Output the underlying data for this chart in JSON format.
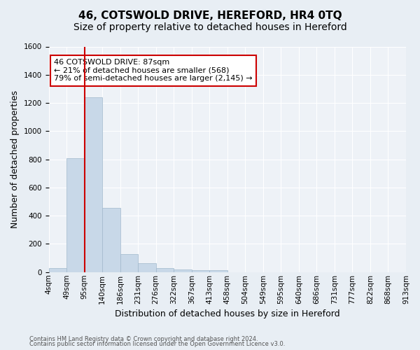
{
  "title": "46, COTSWOLD DRIVE, HEREFORD, HR4 0TQ",
  "subtitle": "Size of property relative to detached houses in Hereford",
  "xlabel": "Distribution of detached houses by size in Hereford",
  "ylabel": "Number of detached properties",
  "footnote1": "Contains HM Land Registry data © Crown copyright and database right 2024.",
  "footnote2": "Contains public sector information licensed under the Open Government Licence v3.0.",
  "bin_labels": [
    "4sqm",
    "49sqm",
    "95sqm",
    "140sqm",
    "186sqm",
    "231sqm",
    "276sqm",
    "322sqm",
    "367sqm",
    "413sqm",
    "458sqm",
    "504sqm",
    "549sqm",
    "595sqm",
    "640sqm",
    "686sqm",
    "731sqm",
    "777sqm",
    "822sqm",
    "868sqm",
    "913sqm"
  ],
  "bar_values": [
    30,
    810,
    1240,
    455,
    130,
    62,
    27,
    20,
    15,
    15,
    0,
    0,
    0,
    0,
    0,
    0,
    0,
    0,
    0,
    0
  ],
  "bar_color": "#c8d8e8",
  "bar_edge_color": "#a0b8cc",
  "red_line_x": 2.0,
  "red_line_color": "#cc0000",
  "annotation_text": "46 COTSWOLD DRIVE: 87sqm\n← 21% of detached houses are smaller (568)\n79% of semi-detached houses are larger (2,145) →",
  "annotation_box_color": "#ffffff",
  "annotation_box_edge": "#cc0000",
  "ylim": [
    0,
    1600
  ],
  "yticks": [
    0,
    200,
    400,
    600,
    800,
    1000,
    1200,
    1400,
    1600
  ],
  "bg_color": "#e8eef4",
  "plot_bg_color": "#eef2f7",
  "title_fontsize": 11,
  "subtitle_fontsize": 10,
  "axis_label_fontsize": 9,
  "tick_fontsize": 7.5,
  "annotation_fontsize": 8
}
